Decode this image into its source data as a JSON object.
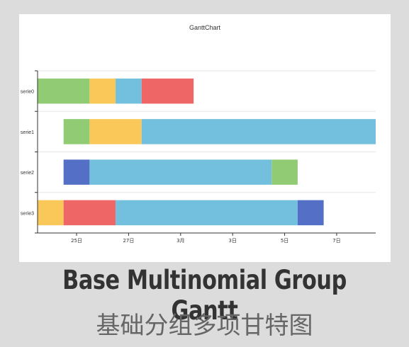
{
  "caption": {
    "title_en": "Base Multinomial Group Gantt",
    "title_zh": "基础分组多项甘特图"
  },
  "chart_data": {
    "type": "gantt",
    "title": "GanttChart",
    "categories": [
      "serie0",
      "serie1",
      "serie2",
      "serie3"
    ],
    "x_ticks": [
      {
        "pos": 1,
        "label": "25日"
      },
      {
        "pos": 3,
        "label": "27日"
      },
      {
        "pos": 5,
        "label": "3月"
      },
      {
        "pos": 7,
        "label": "3日"
      },
      {
        "pos": 9,
        "label": "5日"
      },
      {
        "pos": 11,
        "label": "7日"
      }
    ],
    "xlim": [
      -0.5,
      12.5
    ],
    "grid": true,
    "colors": {
      "green": "#91cc75",
      "yellow": "#fac858",
      "blue": "#73c0de",
      "red": "#ee6666",
      "indigo": "#5470c6"
    },
    "series": [
      {
        "category": "serie0",
        "segments": [
          {
            "start": -0.5,
            "end": 1.5,
            "color": "green"
          },
          {
            "start": 1.5,
            "end": 2.5,
            "color": "yellow"
          },
          {
            "start": 2.5,
            "end": 3.5,
            "color": "blue"
          },
          {
            "start": 3.5,
            "end": 5.5,
            "color": "red"
          }
        ]
      },
      {
        "category": "serie1",
        "segments": [
          {
            "start": 0.5,
            "end": 1.5,
            "color": "green"
          },
          {
            "start": 1.5,
            "end": 3.5,
            "color": "yellow"
          },
          {
            "start": 3.5,
            "end": 12.5,
            "color": "blue"
          }
        ]
      },
      {
        "category": "serie2",
        "segments": [
          {
            "start": 0.5,
            "end": 1.5,
            "color": "indigo"
          },
          {
            "start": 1.5,
            "end": 8.5,
            "color": "blue"
          },
          {
            "start": 8.5,
            "end": 9.5,
            "color": "green"
          }
        ]
      },
      {
        "category": "serie3",
        "segments": [
          {
            "start": -0.5,
            "end": 0.5,
            "color": "yellow"
          },
          {
            "start": 0.5,
            "end": 2.5,
            "color": "red"
          },
          {
            "start": 2.5,
            "end": 9.5,
            "color": "blue"
          },
          {
            "start": 9.5,
            "end": 10.5,
            "color": "indigo"
          }
        ]
      }
    ]
  }
}
